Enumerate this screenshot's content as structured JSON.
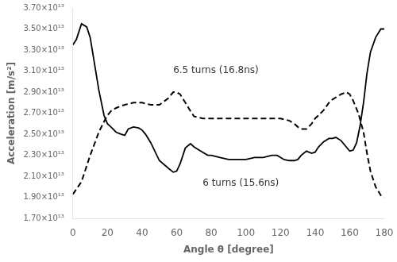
{
  "chart_data": {
    "type": "line",
    "xlabel": "Angle θ [degree]",
    "ylabel": "Acceleration [m/s²]",
    "xlim": [
      0,
      180
    ],
    "ylim": [
      17000000000000.0,
      37000000000000.0
    ],
    "xticks": [
      0,
      20,
      40,
      60,
      80,
      100,
      120,
      140,
      160,
      180
    ],
    "yticks": [
      {
        "value": 17000000000000.0,
        "label": "1.70×10¹³"
      },
      {
        "value": 19000000000000.0,
        "label": "1.90×10¹³"
      },
      {
        "value": 21000000000000.0,
        "label": "2.10×10¹³"
      },
      {
        "value": 23000000000000.0,
        "label": "2.30×10¹³"
      },
      {
        "value": 25000000000000.0,
        "label": "2.50×10¹³"
      },
      {
        "value": 27000000000000.0,
        "label": "2.70×10¹³"
      },
      {
        "value": 29000000000000.0,
        "label": "2.90×10¹³"
      },
      {
        "value": 31000000000000.0,
        "label": "3.10×10¹³"
      },
      {
        "value": 33000000000000.0,
        "label": "3.30×10¹³"
      },
      {
        "value": 35000000000000.0,
        "label": "3.50×10¹³"
      },
      {
        "value": 37000000000000.0,
        "label": "3.70×10¹³"
      }
    ],
    "grid": false,
    "series": [
      {
        "color": "#000000",
        "line_style": "solid",
        "x": [
          0,
          2,
          5,
          8,
          10,
          12,
          15,
          18,
          20,
          22,
          25,
          28,
          30,
          32,
          35,
          38,
          40,
          42,
          45,
          50,
          55,
          58,
          60,
          62,
          65,
          68,
          70,
          72,
          75,
          78,
          80,
          85,
          90,
          95,
          100,
          105,
          110,
          115,
          118,
          120,
          122,
          125,
          128,
          130,
          132,
          135,
          138,
          140,
          142,
          145,
          148,
          150,
          152,
          155,
          158,
          160,
          162,
          164,
          166,
          168,
          170,
          172,
          175,
          178,
          180
        ],
        "values": [
          33500000000000.0,
          34000000000000.0,
          35500000000000.0,
          35200000000000.0,
          34200000000000.0,
          32200000000000.0,
          29200000000000.0,
          26800000000000.0,
          26000000000000.0,
          25700000000000.0,
          25200000000000.0,
          25000000000000.0,
          24900000000000.0,
          25500000000000.0,
          25700000000000.0,
          25600000000000.0,
          25400000000000.0,
          25000000000000.0,
          24200000000000.0,
          22500000000000.0,
          21800000000000.0,
          21400000000000.0,
          21500000000000.0,
          22200000000000.0,
          23700000000000.0,
          24100000000000.0,
          23800000000000.0,
          23600000000000.0,
          23300000000000.0,
          23000000000000.0,
          23000000000000.0,
          22800000000000.0,
          22600000000000.0,
          22600000000000.0,
          22600000000000.0,
          22800000000000.0,
          22800000000000.0,
          23000000000000.0,
          23000000000000.0,
          22800000000000.0,
          22600000000000.0,
          22500000000000.0,
          22500000000000.0,
          22600000000000.0,
          23000000000000.0,
          23400000000000.0,
          23200000000000.0,
          23300000000000.0,
          23800000000000.0,
          24300000000000.0,
          24600000000000.0,
          24600000000000.0,
          24700000000000.0,
          24400000000000.0,
          23800000000000.0,
          23400000000000.0,
          23500000000000.0,
          24200000000000.0,
          25800000000000.0,
          28000000000000.0,
          30800000000000.0,
          32800000000000.0,
          34200000000000.0,
          35000000000000.0,
          35000000000000.0
        ]
      },
      {
        "color": "#000000",
        "line_style": "dashed",
        "x": [
          0,
          5,
          10,
          15,
          18,
          20,
          22,
          25,
          28,
          30,
          35,
          40,
          45,
          50,
          55,
          58,
          60,
          62,
          65,
          68,
          70,
          75,
          80,
          85,
          90,
          95,
          100,
          105,
          108,
          110,
          115,
          120,
          125,
          128,
          130,
          132,
          135,
          138,
          140,
          142,
          145,
          148,
          150,
          155,
          158,
          160,
          162,
          165,
          168,
          170,
          172,
          175,
          178,
          180
        ],
        "values": [
          19300000000000.0,
          20500000000000.0,
          23000000000000.0,
          25200000000000.0,
          26200000000000.0,
          26800000000000.0,
          27200000000000.0,
          27500000000000.0,
          27700000000000.0,
          27800000000000.0,
          28000000000000.0,
          28000000000000.0,
          27800000000000.0,
          27800000000000.0,
          28400000000000.0,
          29000000000000.0,
          29000000000000.0,
          28800000000000.0,
          28000000000000.0,
          27200000000000.0,
          26700000000000.0,
          26500000000000.0,
          26500000000000.0,
          26500000000000.0,
          26500000000000.0,
          26500000000000.0,
          26500000000000.0,
          26500000000000.0,
          26500000000000.0,
          26500000000000.0,
          26500000000000.0,
          26500000000000.0,
          26300000000000.0,
          26000000000000.0,
          25700000000000.0,
          25500000000000.0,
          25500000000000.0,
          26000000000000.0,
          26500000000000.0,
          26800000000000.0,
          27300000000000.0,
          28000000000000.0,
          28300000000000.0,
          28800000000000.0,
          29000000000000.0,
          28800000000000.0,
          28200000000000.0,
          27000000000000.0,
          25200000000000.0,
          23200000000000.0,
          21500000000000.0,
          20000000000000.0,
          19200000000000.0,
          19000000000000.0
        ]
      }
    ],
    "annotations": [
      {
        "text": "6.5 turns (16.8ns)",
        "x": 58,
        "y": 30600000000000.0
      },
      {
        "text": "6 turns (15.6ns)",
        "x": 75,
        "y": 20800000000000.0
      }
    ]
  }
}
